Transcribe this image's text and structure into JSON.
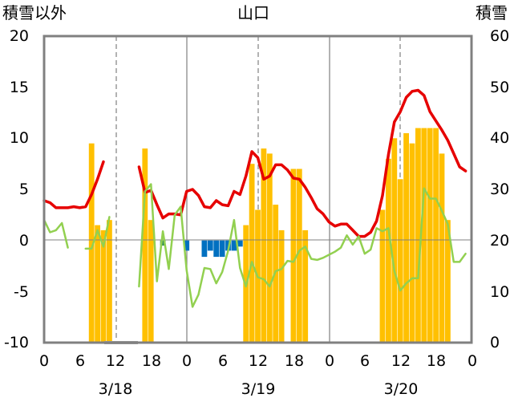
{
  "chart_data": {
    "type": "bar+line",
    "title": "山口",
    "left_axis_label": "積雪以外",
    "right_axis_label": "積雪",
    "left_ylim": [
      -10,
      20
    ],
    "right_ylim": [
      0,
      60
    ],
    "left_ticks": [
      "20",
      "15",
      "10",
      "5",
      "0",
      "-5",
      "-10"
    ],
    "right_ticks": [
      "60",
      "50",
      "40",
      "30",
      "20",
      "10",
      "0"
    ],
    "x_hour_range": [
      0,
      72
    ],
    "x_tick_labels": [
      "0",
      "6",
      "12",
      "18",
      "0",
      "6",
      "12",
      "18",
      "0",
      "6",
      "12",
      "18",
      "0"
    ],
    "date_labels": [
      "3/18",
      "3/19",
      "3/20"
    ],
    "grid": "dashed vertical at 12h, solid vertical at day boundaries",
    "colors": {
      "red_line": "#e60000",
      "green_line": "#92d050",
      "orange_bars": "#ffc000",
      "blue_bars": "#0070c0",
      "teal_bars": "#2e8b57",
      "purple_line": "#7030a0",
      "frame": "#808080"
    },
    "series": [
      {
        "role": "red_line",
        "axis": "left",
        "segments": [
          [
            [
              0,
              3.9
            ],
            [
              1,
              3.7
            ],
            [
              2,
              3.2
            ],
            [
              3,
              3.2
            ],
            [
              4,
              3.2
            ],
            [
              5,
              3.3
            ],
            [
              6,
              3.2
            ],
            [
              7,
              3.3
            ],
            [
              8,
              4.5
            ],
            [
              9,
              6.0
            ],
            [
              10,
              7.7
            ]
          ],
          [
            [
              16,
              7.2
            ],
            [
              17,
              4.7
            ],
            [
              18,
              4.9
            ],
            [
              19,
              3.5
            ],
            [
              20,
              2.2
            ],
            [
              21,
              2.6
            ],
            [
              22,
              2.6
            ],
            [
              23,
              2.5
            ],
            [
              24,
              4.8
            ],
            [
              25,
              5.0
            ],
            [
              26,
              4.4
            ],
            [
              27,
              3.3
            ],
            [
              28,
              3.2
            ],
            [
              29,
              3.9
            ],
            [
              30,
              3.5
            ],
            [
              31,
              3.4
            ],
            [
              32,
              4.8
            ],
            [
              33,
              4.5
            ],
            [
              34,
              6.3
            ],
            [
              35,
              8.7
            ],
            [
              36,
              8.1
            ],
            [
              37,
              6.0
            ],
            [
              38,
              6.3
            ],
            [
              39,
              7.4
            ],
            [
              40,
              7.4
            ],
            [
              41,
              6.9
            ],
            [
              42,
              6.1
            ],
            [
              43,
              6.0
            ],
            [
              44,
              5.2
            ],
            [
              45,
              4.2
            ],
            [
              46,
              3.1
            ],
            [
              47,
              2.6
            ],
            [
              48,
              1.8
            ],
            [
              49,
              1.4
            ],
            [
              50,
              1.6
            ],
            [
              51,
              1.6
            ],
            [
              52,
              1.0
            ],
            [
              53,
              0.4
            ],
            [
              54,
              0.4
            ],
            [
              55,
              0.8
            ],
            [
              56,
              1.9
            ],
            [
              57,
              4.4
            ],
            [
              58,
              8.4
            ],
            [
              59,
              11.6
            ],
            [
              60,
              12.6
            ],
            [
              61,
              14.0
            ],
            [
              62,
              14.6
            ],
            [
              63,
              14.7
            ],
            [
              64,
              14.2
            ],
            [
              65,
              12.6
            ],
            [
              66,
              11.7
            ],
            [
              67,
              10.8
            ],
            [
              68,
              9.8
            ],
            [
              69,
              8.5
            ],
            [
              70,
              7.2
            ],
            [
              71,
              6.8
            ]
          ]
        ]
      },
      {
        "role": "green_line",
        "axis": "left",
        "segments": [
          [
            [
              0,
              2.0
            ],
            [
              1,
              0.8
            ],
            [
              2,
              1.0
            ],
            [
              3,
              1.7
            ],
            [
              4,
              -0.7
            ]
          ],
          [
            [
              7,
              -0.8
            ],
            [
              8,
              -0.8
            ],
            [
              9,
              1.0
            ],
            [
              10,
              -0.6
            ],
            [
              11,
              2.3
            ]
          ],
          [
            [
              16,
              -4.5
            ],
            [
              17,
              4.8
            ],
            [
              18,
              5.5
            ],
            [
              19,
              -4.0
            ],
            [
              20,
              0.9
            ],
            [
              21,
              -2.8
            ],
            [
              22,
              2.5
            ],
            [
              23,
              3.3
            ],
            [
              24,
              -2.9
            ],
            [
              25,
              -6.5
            ],
            [
              26,
              -5.3
            ],
            [
              27,
              -2.7
            ],
            [
              28,
              -2.8
            ],
            [
              29,
              -4.2
            ],
            [
              30,
              -3.1
            ],
            [
              31,
              -1.0
            ],
            [
              32,
              2.0
            ],
            [
              33,
              -2.7
            ],
            [
              34,
              -4.5
            ],
            [
              35,
              -2.1
            ],
            [
              36,
              -3.6
            ],
            [
              37,
              -3.8
            ],
            [
              38,
              -4.5
            ],
            [
              39,
              -3.0
            ],
            [
              40,
              -2.8
            ],
            [
              41,
              -2.0
            ],
            [
              42,
              -2.1
            ],
            [
              43,
              -1.0
            ],
            [
              44,
              -0.6
            ],
            [
              45,
              -1.8
            ],
            [
              46,
              -1.9
            ],
            [
              47,
              -1.7
            ],
            [
              48,
              -1.4
            ],
            [
              49,
              -1.1
            ],
            [
              50,
              -0.7
            ],
            [
              51,
              0.5
            ],
            [
              52,
              -0.4
            ],
            [
              53,
              0.4
            ],
            [
              54,
              -1.3
            ],
            [
              55,
              -0.9
            ],
            [
              56,
              1.2
            ],
            [
              57,
              0.9
            ],
            [
              58,
              1.2
            ],
            [
              59,
              -3.0
            ],
            [
              60,
              -4.9
            ],
            [
              61,
              -4.2
            ],
            [
              62,
              -3.7
            ],
            [
              63,
              -3.7
            ],
            [
              64,
              5.1
            ],
            [
              65,
              4.1
            ],
            [
              66,
              4.1
            ],
            [
              67,
              2.9
            ],
            [
              68,
              1.6
            ],
            [
              69,
              -2.1
            ],
            [
              70,
              -2.1
            ],
            [
              71,
              -1.3
            ]
          ]
        ]
      },
      {
        "role": "orange_bars",
        "axis": "right",
        "bars": [
          [
            8,
            39
          ],
          [
            9,
            23
          ],
          [
            10,
            22
          ],
          [
            11,
            24
          ],
          [
            17,
            38
          ],
          [
            18,
            24
          ],
          [
            34,
            23
          ],
          [
            35,
            35
          ],
          [
            36,
            26
          ],
          [
            37,
            38
          ],
          [
            38,
            37
          ],
          [
            39,
            27
          ],
          [
            40,
            22
          ],
          [
            42,
            34
          ],
          [
            43,
            34
          ],
          [
            44,
            22
          ],
          [
            57,
            26
          ],
          [
            58,
            36
          ],
          [
            59,
            40
          ],
          [
            60,
            32
          ],
          [
            61,
            41
          ],
          [
            62,
            39
          ],
          [
            63,
            42
          ],
          [
            64,
            42
          ],
          [
            65,
            42
          ],
          [
            66,
            42
          ],
          [
            67,
            37
          ],
          [
            68,
            24
          ]
        ]
      },
      {
        "role": "blue_bars",
        "axis": "left",
        "bars": [
          [
            24,
            -1.0
          ],
          [
            27,
            -1.6
          ],
          [
            28,
            -1.0
          ],
          [
            29,
            -1.6
          ],
          [
            30,
            -1.6
          ],
          [
            31,
            -1.0
          ],
          [
            32,
            -1.0
          ],
          [
            33,
            -0.6
          ]
        ]
      },
      {
        "role": "teal_bars",
        "axis": "left",
        "bars": [
          [
            20,
            -0.5
          ]
        ]
      }
    ]
  }
}
